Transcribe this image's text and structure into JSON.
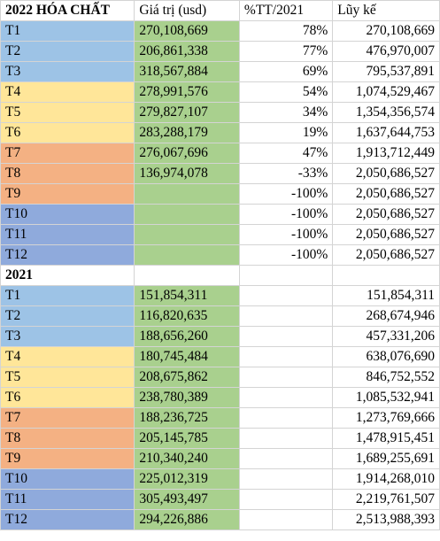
{
  "colors": {
    "q1": "#9dc3e6",
    "q2": "#ffe699",
    "q3": "#f4b183",
    "q4": "#8faadc",
    "value_fill": "#a9d08e"
  },
  "header": {
    "title": "2022 HÓA CHẤT",
    "col_value": "Giá trị (usd)",
    "col_pct": "%TT/2021",
    "col_cum": "Lũy kế"
  },
  "section2021": {
    "title": "2021"
  },
  "rows2022": [
    {
      "month": "T1",
      "value": "270,108,669",
      "pct": "78%",
      "cum": "270,108,669",
      "q": "q1"
    },
    {
      "month": "T2",
      "value": "206,861,338",
      "pct": "77%",
      "cum": "476,970,007",
      "q": "q1"
    },
    {
      "month": "T3",
      "value": "318,567,884",
      "pct": "69%",
      "cum": "795,537,891",
      "q": "q1"
    },
    {
      "month": "T4",
      "value": "278,991,576",
      "pct": "54%",
      "cum": "1,074,529,467",
      "q": "q2"
    },
    {
      "month": "T5",
      "value": "279,827,107",
      "pct": "34%",
      "cum": "1,354,356,574",
      "q": "q2"
    },
    {
      "month": "T6",
      "value": "283,288,179",
      "pct": "19%",
      "cum": "1,637,644,753",
      "q": "q2"
    },
    {
      "month": "T7",
      "value": "276,067,696",
      "pct": "47%",
      "cum": "1,913,712,449",
      "q": "q3"
    },
    {
      "month": "T8",
      "value": "136,974,078",
      "pct": "-33%",
      "cum": "2,050,686,527",
      "q": "q3"
    },
    {
      "month": "T9",
      "value": "",
      "pct": "-100%",
      "cum": "2,050,686,527",
      "q": "q3"
    },
    {
      "month": "T10",
      "value": "",
      "pct": "-100%",
      "cum": "2,050,686,527",
      "q": "q4"
    },
    {
      "month": "T11",
      "value": "",
      "pct": "-100%",
      "cum": "2,050,686,527",
      "q": "q4"
    },
    {
      "month": "T12",
      "value": "",
      "pct": "-100%",
      "cum": "2,050,686,527",
      "q": "q4"
    }
  ],
  "rows2021": [
    {
      "month": "T1",
      "value": "151,854,311",
      "cum": "151,854,311",
      "q": "q1"
    },
    {
      "month": "T2",
      "value": "116,820,635",
      "cum": "268,674,946",
      "q": "q1"
    },
    {
      "month": "T3",
      "value": "188,656,260",
      "cum": "457,331,206",
      "q": "q1"
    },
    {
      "month": "T4",
      "value": "180,745,484",
      "cum": "638,076,690",
      "q": "q2"
    },
    {
      "month": "T5",
      "value": "208,675,862",
      "cum": "846,752,552",
      "q": "q2"
    },
    {
      "month": "T6",
      "value": "238,780,389",
      "cum": "1,085,532,941",
      "q": "q2"
    },
    {
      "month": "T7",
      "value": "188,236,725",
      "cum": "1,273,769,666",
      "q": "q3"
    },
    {
      "month": "T8",
      "value": "205,145,785",
      "cum": "1,478,915,451",
      "q": "q3"
    },
    {
      "month": "T9",
      "value": "210,340,240",
      "cum": "1,689,255,691",
      "q": "q3"
    },
    {
      "month": "T10",
      "value": "225,012,319",
      "cum": "1,914,268,010",
      "q": "q4"
    },
    {
      "month": "T11",
      "value": "305,493,497",
      "cum": "2,219,761,507",
      "q": "q4"
    },
    {
      "month": "T12",
      "value": "294,226,886",
      "cum": "2,513,988,393",
      "q": "q4"
    }
  ]
}
